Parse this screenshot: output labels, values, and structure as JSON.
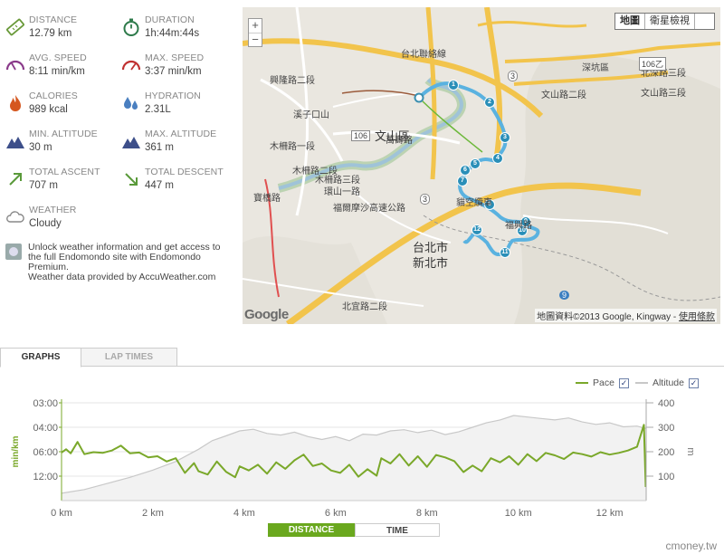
{
  "stats": {
    "distance": {
      "label": "DISTANCE",
      "value": "12.79 km",
      "icon": "ruler-icon"
    },
    "duration": {
      "label": "DURATION",
      "value": "1h:44m:44s",
      "icon": "stopwatch-icon"
    },
    "avg_speed": {
      "label": "AVG. SPEED",
      "value": "8:11 min/km",
      "icon": "speedometer-icon"
    },
    "max_speed": {
      "label": "MAX. SPEED",
      "value": "3:37 min/km",
      "icon": "speedometer-max-icon"
    },
    "calories": {
      "label": "CALORIES",
      "value": "989 kcal",
      "icon": "flame-icon"
    },
    "hydration": {
      "label": "HYDRATION",
      "value": "2.31L",
      "icon": "water-drops-icon"
    },
    "min_alt": {
      "label": "MIN. ALTITUDE",
      "value": "30 m",
      "icon": "mountain-icon"
    },
    "max_alt": {
      "label": "MAX. ALTITUDE",
      "value": "361 m",
      "icon": "mountain-icon"
    },
    "ascent": {
      "label": "TOTAL ASCENT",
      "value": "707 m",
      "icon": "arrow-up-right-icon"
    },
    "descent": {
      "label": "TOTAL DESCENT",
      "value": "447 m",
      "icon": "arrow-down-right-icon"
    },
    "weather": {
      "label": "WEATHER",
      "value": "Cloudy",
      "icon": "cloud-icon"
    }
  },
  "unlock": {
    "line1": "Unlock weather information and get access to",
    "line2": "the full Endomondo site with Endomondo",
    "line3": "Premium.",
    "line4": "Weather data provided by AccuWeather.com"
  },
  "map": {
    "zoom_in": "+",
    "zoom_out": "−",
    "type_map": "地圖",
    "type_satellite": "衛星檢視",
    "district": "文山區",
    "labels": {
      "l1": "台北聯絡線",
      "l2": "北深路三段",
      "l3": "深坑區",
      "l4": "文山路三段",
      "l5": "文山路二段",
      "l6": "興隆路二段",
      "l7": "萬壽路",
      "l8": "木柵路一段",
      "l9": "木柵路二段",
      "l10": "木柵路三段",
      "l11": "福興路",
      "l12": "環山一路",
      "l13": "福爾摩沙高速公路",
      "l14": "貓空纜車",
      "l15": "台北市",
      "l16": "新北市",
      "l17": "溪子口山",
      "l18": "寶橋路",
      "l19": "北宜路二段",
      "r106": "106",
      "r106b": "106乙",
      "r3": "3",
      "r3b": "3",
      "r9": "9"
    },
    "markers": [
      "1",
      "2",
      "3",
      "4",
      "5",
      "6",
      "7",
      "8",
      "9",
      "10",
      "11",
      "12"
    ],
    "google": "Google",
    "copyright": "地圖資料©2013 Google, Kingway - ",
    "terms": "使用條款"
  },
  "tabs": {
    "graphs": "GRAPHS",
    "lap_times": "LAP TIMES"
  },
  "graph": {
    "legend_pace": "Pace",
    "legend_altitude": "Altitude",
    "check": "✓",
    "toggle_distance": "DISTANCE",
    "toggle_time": "TIME",
    "watermark": "cmoney.tw",
    "colors": {
      "pace": "#7aa82a",
      "altitude": "#c8c8c8"
    }
  },
  "chart_data": {
    "type": "line",
    "x_unit": "km",
    "xlim": [
      0,
      12.8
    ],
    "x_ticks": [
      0,
      2,
      4,
      6,
      8,
      10,
      12
    ],
    "x_tick_labels": [
      "0 km",
      "2 km",
      "4 km",
      "6 km",
      "8 km",
      "10 km",
      "12 km"
    ],
    "ylabel": "min/km",
    "y_ticks": [
      "03:00",
      "04:00",
      "06:00",
      "12:00"
    ],
    "y2label": "m",
    "y2lim": [
      0,
      400
    ],
    "y2_ticks": [
      100,
      200,
      300,
      400
    ],
    "grid": true,
    "legend": "top-right",
    "series": [
      {
        "name": "Pace",
        "axis": "left",
        "x": [
          0,
          0.1,
          0.2,
          0.35,
          0.5,
          0.7,
          0.9,
          1.1,
          1.3,
          1.5,
          1.7,
          1.9,
          2.1,
          2.3,
          2.5,
          2.7,
          2.9,
          3.0,
          3.2,
          3.4,
          3.6,
          3.8,
          3.9,
          4.1,
          4.3,
          4.5,
          4.7,
          4.9,
          5.1,
          5.3,
          5.5,
          5.7,
          5.9,
          6.1,
          6.3,
          6.5,
          6.7,
          6.9,
          7.0,
          7.2,
          7.4,
          7.6,
          7.8,
          8.0,
          8.2,
          8.4,
          8.6,
          8.8,
          9.0,
          9.2,
          9.4,
          9.6,
          9.8,
          10.0,
          10.2,
          10.4,
          10.6,
          10.8,
          11.0,
          11.2,
          11.4,
          11.6,
          11.8,
          12.0,
          12.2,
          12.4,
          12.6,
          12.75,
          12.79
        ],
        "values": [
          6.2,
          5.8,
          6.4,
          5.2,
          6.6,
          6.1,
          6.3,
          5.9,
          5.5,
          6.4,
          6.2,
          7.4,
          7.1,
          8.4,
          7.6,
          11.2,
          8.8,
          10.8,
          11.6,
          8.4,
          10.9,
          12.2,
          9.6,
          10.6,
          9.2,
          11.4,
          8.6,
          10.2,
          8.1,
          6.7,
          9.5,
          8.9,
          10.6,
          11.2,
          9.2,
          12.1,
          10.3,
          11.9,
          7.6,
          8.9,
          6.6,
          9.4,
          7.1,
          9.7,
          6.8,
          7.4,
          8.3,
          11.0,
          9.4,
          10.8,
          7.6,
          8.6,
          7.1,
          9.2,
          6.6,
          8.3,
          6.3,
          6.9,
          7.8,
          6.2,
          6.6,
          7.2,
          6.1,
          6.7,
          6.3,
          5.9,
          5.6,
          3.9,
          14.0
        ]
      },
      {
        "name": "Altitude",
        "axis": "right",
        "x": [
          0,
          0.5,
          1.0,
          1.5,
          2.0,
          2.5,
          3.0,
          3.3,
          3.6,
          3.9,
          4.2,
          4.5,
          4.8,
          5.1,
          5.4,
          5.7,
          6.0,
          6.3,
          6.6,
          6.9,
          7.2,
          7.5,
          7.8,
          8.1,
          8.4,
          8.7,
          9.0,
          9.3,
          9.6,
          9.9,
          10.2,
          10.5,
          10.8,
          11.1,
          11.4,
          11.7,
          12.0,
          12.3,
          12.6,
          12.79
        ],
        "values": [
          30,
          45,
          70,
          95,
          125,
          160,
          210,
          245,
          265,
          285,
          292,
          275,
          268,
          280,
          262,
          250,
          262,
          245,
          272,
          268,
          285,
          290,
          278,
          288,
          270,
          282,
          300,
          318,
          330,
          348,
          342,
          336,
          330,
          338,
          322,
          312,
          318,
          302,
          305,
          295
        ]
      }
    ]
  }
}
